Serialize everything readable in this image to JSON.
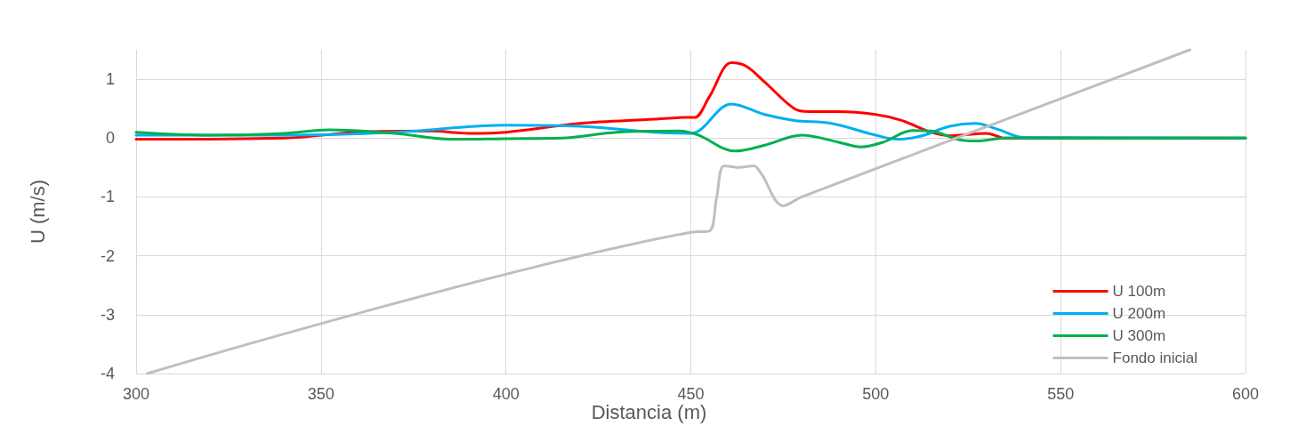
{
  "chart_data": {
    "type": "line",
    "xlabel": "Distancia (m)",
    "ylabel": "U (m/s)",
    "xlim": [
      300,
      600
    ],
    "xticks": [
      300,
      350,
      400,
      450,
      500,
      550,
      600
    ],
    "ylim": [
      -4,
      1.5
    ],
    "yticks": [
      -4,
      -3,
      -2,
      -1,
      0,
      1
    ],
    "grid": true,
    "legend": "bottom right",
    "marker": "none",
    "line_style": "solid",
    "series": [
      {
        "name": "U 100m",
        "color": "#ff0000",
        "x": [
          300,
          340,
          360,
          380,
          390,
          400,
          420,
          440,
          448,
          451,
          455,
          461,
          465,
          470,
          478,
          482,
          490,
          500,
          507,
          515,
          520,
          530,
          535,
          600
        ],
        "values": [
          -0.02,
          0.0,
          0.1,
          0.12,
          0.08,
          0.1,
          0.25,
          0.32,
          0.35,
          0.35,
          0.7,
          1.28,
          1.22,
          0.95,
          0.5,
          0.45,
          0.45,
          0.4,
          0.3,
          0.1,
          0.04,
          0.08,
          0.0,
          0.0
        ]
      },
      {
        "name": "U 200m",
        "color": "#00b0f0",
        "x": [
          300,
          340,
          370,
          400,
          420,
          440,
          450,
          461,
          470,
          478,
          488,
          500,
          506,
          512,
          520,
          527,
          533,
          540,
          600
        ],
        "values": [
          0.05,
          0.05,
          0.1,
          0.22,
          0.2,
          0.1,
          0.08,
          0.58,
          0.4,
          0.3,
          0.25,
          0.05,
          -0.02,
          0.03,
          0.2,
          0.25,
          0.15,
          0.01,
          0.0
        ]
      },
      {
        "name": "U 300m",
        "color": "#00b050",
        "x": [
          300,
          320,
          340,
          352,
          370,
          385,
          400,
          415,
          430,
          447,
          452,
          462,
          470,
          480,
          490,
          496,
          502,
          510,
          515,
          522,
          527,
          535,
          600
        ],
        "values": [
          0.1,
          0.05,
          0.08,
          0.14,
          0.08,
          -0.02,
          -0.01,
          0.0,
          0.1,
          0.12,
          0.05,
          -0.22,
          -0.12,
          0.05,
          -0.07,
          -0.15,
          -0.07,
          0.13,
          0.12,
          -0.02,
          -0.05,
          0.0,
          0.0
        ]
      },
      {
        "name": "Fondo inicial",
        "color": "#bfbfbf",
        "x": [
          303,
          450,
          455,
          457,
          459,
          463,
          467,
          469,
          475,
          480,
          585
        ],
        "values": [
          -4,
          -1.6,
          -1.58,
          -1.0,
          -0.47,
          -0.5,
          -0.47,
          -0.6,
          -1.15,
          -1.0,
          1.5
        ]
      }
    ]
  }
}
